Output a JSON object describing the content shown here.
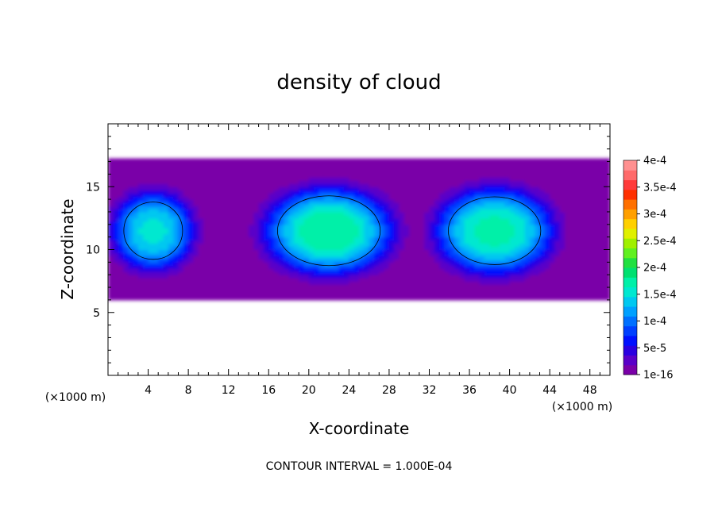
{
  "chart_data": {
    "type": "heatmap",
    "title": "density of cloud",
    "xlabel": "X-coordinate",
    "ylabel": "Z-coordinate",
    "x_unit_label": "(×1000 m)",
    "note": "CONTOUR INTERVAL = 1.000E-04",
    "xlim": [
      0,
      50
    ],
    "ylim": [
      0,
      20
    ],
    "x_ticks": [
      4,
      8,
      12,
      16,
      20,
      24,
      28,
      32,
      36,
      40,
      44,
      48
    ],
    "y_ticks": [
      5,
      10,
      15
    ],
    "x_tick_labels": [
      "4",
      "8",
      "12",
      "16",
      "20",
      "24",
      "28",
      "32",
      "36",
      "40",
      "44",
      "48"
    ],
    "y_tick_labels": [
      "5",
      "10",
      "15"
    ],
    "colorbar": {
      "labels": [
        "1e-16",
        "5e-5",
        "1e-4",
        "1.5e-4",
        "2e-4",
        "2.5e-4",
        "3e-4",
        "3.5e-4",
        "4e-4"
      ],
      "label_values": [
        0,
        5e-05,
        0.0001,
        0.00015,
        0.0002,
        0.00025,
        0.0003,
        0.00035,
        0.0004
      ],
      "min": 0,
      "max": 0.0004,
      "colors": [
        "#7a00a8",
        "#5a00c8",
        "#2a00e0",
        "#0010ff",
        "#0040ff",
        "#0070ff",
        "#00a0ff",
        "#00c8f0",
        "#00e8d0",
        "#00f0a8",
        "#00e070",
        "#20e040",
        "#60f020",
        "#a0f000",
        "#e0f000",
        "#ffd000",
        "#ffa000",
        "#ff7000",
        "#ff3000",
        "#ff3a3a",
        "#ff6a6a",
        "#ff9090"
      ]
    },
    "cells": [
      {
        "name": "left-cloud",
        "x_center": 4.5,
        "z_center": 11.5,
        "x_half_width": 4.5,
        "z_half_height": 3.5,
        "peak": 0.00015
      },
      {
        "name": "central-cloud",
        "x_center": 22,
        "z_center": 11.5,
        "x_half_width": 7,
        "z_half_height": 3.8,
        "peak": 0.00018
      },
      {
        "name": "right-cloud",
        "x_center": 38.5,
        "z_center": 11.5,
        "x_half_width": 6.5,
        "z_half_height": 3.8,
        "peak": 0.00017
      }
    ],
    "cloud_layer": {
      "z_bottom": 6,
      "z_top": 17.2
    },
    "contour_levels": [
      0.0001
    ]
  }
}
